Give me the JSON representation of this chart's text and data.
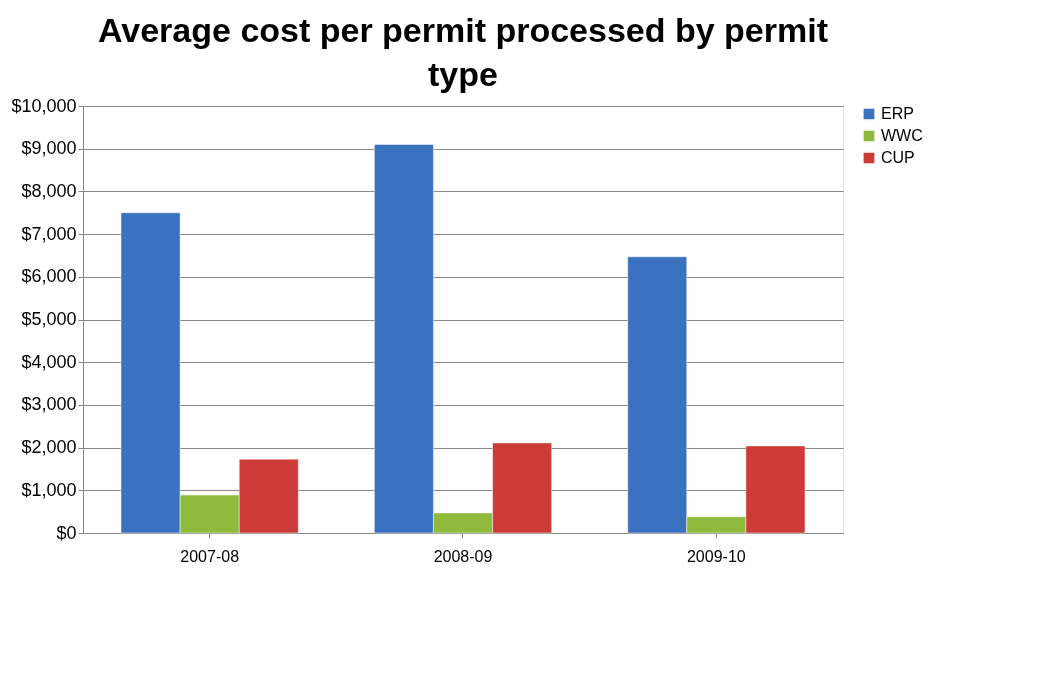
{
  "chart_data": {
    "type": "bar",
    "title": "Average cost per permit processed by permit type",
    "categories": [
      "2007-08",
      "2008-09",
      "2009-10"
    ],
    "series": [
      {
        "name": "ERP",
        "color": "#3b72c0",
        "values": [
          7500,
          9100,
          6470
        ]
      },
      {
        "name": "WWC",
        "color": "#8fba3c",
        "values": [
          890,
          470,
          380
        ]
      },
      {
        "name": "CUP",
        "color": "#cc3b37",
        "values": [
          1730,
          2110,
          2040
        ]
      }
    ],
    "ylim": [
      0,
      10000
    ],
    "yticks": [
      {
        "value": 0,
        "label": "$0"
      },
      {
        "value": 1000,
        "label": "$1,000"
      },
      {
        "value": 2000,
        "label": "$2,000"
      },
      {
        "value": 3000,
        "label": "$3,000"
      },
      {
        "value": 4000,
        "label": "$4,000"
      },
      {
        "value": 5000,
        "label": "$5,000"
      },
      {
        "value": 6000,
        "label": "$6,000"
      },
      {
        "value": 7000,
        "label": "$7,000"
      },
      {
        "value": 8000,
        "label": "$8,000"
      },
      {
        "value": 9000,
        "label": "$9,000"
      },
      {
        "value": 10000,
        "label": "$10,000"
      }
    ],
    "grid": "y",
    "legend": "right"
  }
}
